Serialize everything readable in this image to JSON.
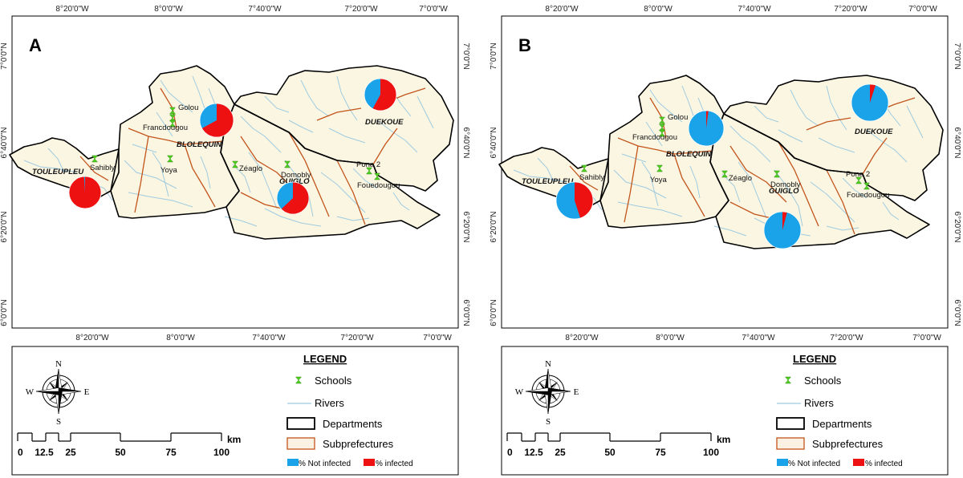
{
  "colors": {
    "not_infected": "#1aa3e8",
    "infected": "#ee1111",
    "land": "#fbf6e2",
    "river": "#9fcbe0",
    "subprefecture": "#c2541c",
    "school": "#4fcf1f"
  },
  "coordinate_labels": {
    "top": [
      "8°20'0\"W",
      "8°0'0\"W",
      "7°40'0\"W",
      "7°20'0\"W",
      "7°0'0\"W"
    ],
    "bottom": [
      "8°20'0\"W",
      "8°0'0\"W",
      "7°40'0\"W",
      "7°20'0\"W",
      "7°0'0\"W"
    ],
    "side": [
      "7°0'0\"N",
      "6°40'0\"N",
      "6°20'0\"N",
      "6°0'0\"N"
    ]
  },
  "places": {
    "departments": [
      "TOULEUPLEU",
      "BLOLEQUIN",
      "GUIGLO",
      "DUEKOUE"
    ],
    "towns": [
      "Golou",
      "Francdougou",
      "Sahibly",
      "Yoya",
      "Zéaglo",
      "Domobly",
      "Pona 2",
      "Fouedougou"
    ]
  },
  "legend": {
    "title": "LEGEND",
    "schools": "Schools",
    "rivers": "Rivers",
    "departments": "Departments",
    "subprefectures": "Subprefectures",
    "not_infected": "% Not infected",
    "infected": "% infected"
  },
  "compass": {
    "n": "N",
    "s": "S",
    "e": "E",
    "w": "W"
  },
  "scale": {
    "ticks": [
      "0",
      "12.5",
      "25",
      "50",
      "75",
      "100"
    ],
    "unit": "km"
  },
  "panels": [
    {
      "label": "A",
      "pies": [
        {
          "department": "TOULEUPLEU",
          "infected_pct": 99
        },
        {
          "department": "BLOLEQUIN",
          "infected_pct": 67
        },
        {
          "department": "GUIGLO",
          "infected_pct": 63
        },
        {
          "department": "DUEKOUE",
          "infected_pct": 58
        }
      ]
    },
    {
      "label": "B",
      "pies": [
        {
          "department": "TOULEUPLEU",
          "infected_pct": 45
        },
        {
          "department": "BLOLEQUIN",
          "infected_pct": 2
        },
        {
          "department": "GUIGLO",
          "infected_pct": 4
        },
        {
          "department": "DUEKOUE",
          "infected_pct": 5
        }
      ]
    }
  ]
}
